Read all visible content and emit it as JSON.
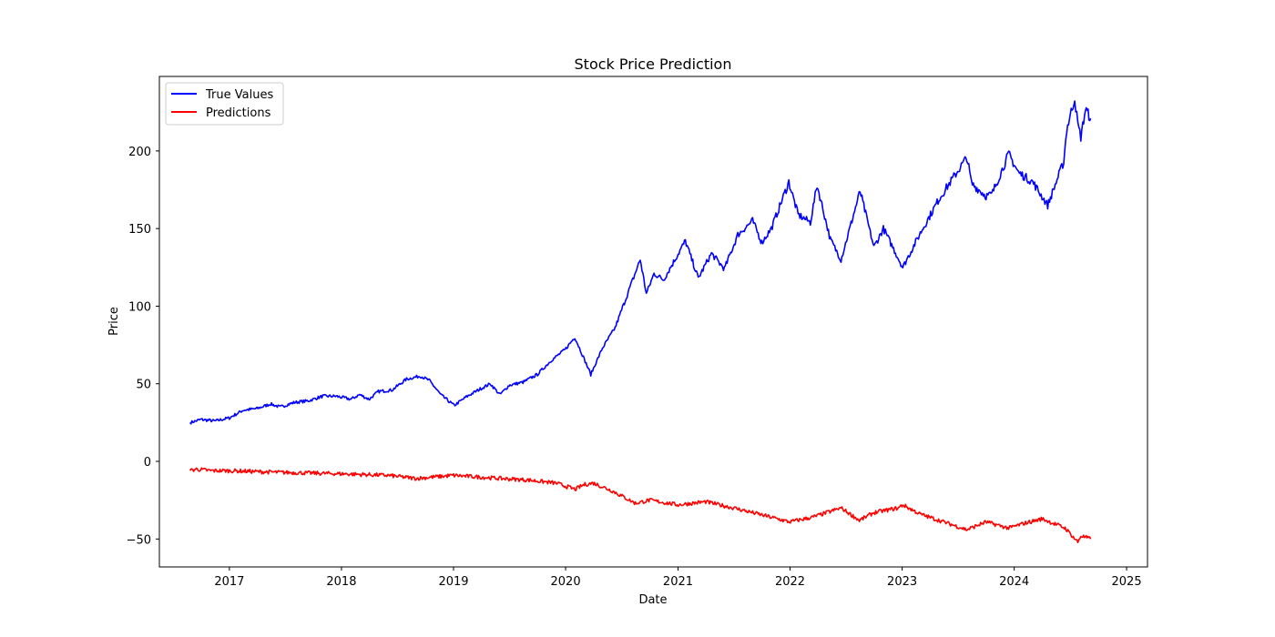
{
  "chart_data": {
    "type": "line",
    "title": "Stock Price Prediction",
    "xlabel": "Date",
    "ylabel": "Price",
    "xlim": [
      "2016-05-18",
      "2025-03-10"
    ],
    "ylim": [
      -68,
      248
    ],
    "x_ticks": [
      "2017",
      "2018",
      "2019",
      "2020",
      "2021",
      "2022",
      "2023",
      "2024",
      "2025"
    ],
    "y_ticks": [
      "-50",
      "0",
      "50",
      "100",
      "150",
      "200"
    ],
    "grid": false,
    "legend_position": "top-left",
    "series": [
      {
        "name": "True Values",
        "color": "#0000ff",
        "points": [
          [
            "2016-08-26",
            25
          ],
          [
            "2016-10-01",
            27
          ],
          [
            "2016-11-15",
            26
          ],
          [
            "2017-01-01",
            28
          ],
          [
            "2017-02-15",
            33
          ],
          [
            "2017-04-01",
            34
          ],
          [
            "2017-05-15",
            37
          ],
          [
            "2017-06-15",
            35
          ],
          [
            "2017-08-01",
            38
          ],
          [
            "2017-09-15",
            39
          ],
          [
            "2017-11-01",
            42
          ],
          [
            "2017-12-15",
            42
          ],
          [
            "2018-02-01",
            40
          ],
          [
            "2018-03-01",
            43
          ],
          [
            "2018-04-01",
            40
          ],
          [
            "2018-05-01",
            45
          ],
          [
            "2018-06-15",
            46
          ],
          [
            "2018-08-01",
            53
          ],
          [
            "2018-09-15",
            55
          ],
          [
            "2018-10-15",
            52
          ],
          [
            "2018-11-20",
            43
          ],
          [
            "2019-01-03",
            36
          ],
          [
            "2019-02-15",
            42
          ],
          [
            "2019-04-01",
            47
          ],
          [
            "2019-05-01",
            50
          ],
          [
            "2019-06-01",
            43
          ],
          [
            "2019-07-01",
            49
          ],
          [
            "2019-08-15",
            51
          ],
          [
            "2019-10-01",
            56
          ],
          [
            "2019-11-15",
            65
          ],
          [
            "2019-12-30",
            72
          ],
          [
            "2020-01-31",
            80
          ],
          [
            "2020-03-23",
            56
          ],
          [
            "2020-04-30",
            73
          ],
          [
            "2020-06-10",
            86
          ],
          [
            "2020-08-31",
            130
          ],
          [
            "2020-09-20",
            108
          ],
          [
            "2020-10-15",
            121
          ],
          [
            "2020-11-15",
            117
          ],
          [
            "2021-01-25",
            142
          ],
          [
            "2021-03-08",
            118
          ],
          [
            "2021-04-20",
            134
          ],
          [
            "2021-06-01",
            124
          ],
          [
            "2021-07-15",
            146
          ],
          [
            "2021-09-01",
            155
          ],
          [
            "2021-10-01",
            141
          ],
          [
            "2021-11-01",
            150
          ],
          [
            "2021-12-28",
            180
          ],
          [
            "2022-01-27",
            159
          ],
          [
            "2022-03-08",
            154
          ],
          [
            "2022-03-30",
            178
          ],
          [
            "2022-05-12",
            143
          ],
          [
            "2022-06-16",
            130
          ],
          [
            "2022-08-17",
            174
          ],
          [
            "2022-10-01",
            138
          ],
          [
            "2022-11-01",
            150
          ],
          [
            "2023-01-03",
            125
          ],
          [
            "2023-03-01",
            147
          ],
          [
            "2023-05-01",
            169
          ],
          [
            "2023-07-31",
            196
          ],
          [
            "2023-08-15",
            179
          ],
          [
            "2023-10-01",
            171
          ],
          [
            "2023-10-20",
            172
          ],
          [
            "2023-12-14",
            198
          ],
          [
            "2024-01-15",
            186
          ],
          [
            "2024-03-01",
            180
          ],
          [
            "2024-04-19",
            165
          ],
          [
            "2024-06-10",
            193
          ],
          [
            "2024-06-20",
            214
          ],
          [
            "2024-07-16",
            234
          ],
          [
            "2024-07-26",
            217
          ],
          [
            "2024-08-05",
            209
          ],
          [
            "2024-08-20",
            227
          ],
          [
            "2024-09-06",
            221
          ]
        ]
      },
      {
        "name": "Predictions",
        "color": "#ff0000",
        "points": [
          [
            "2016-08-26",
            -6
          ],
          [
            "2016-09-15",
            -5
          ],
          [
            "2016-11-01",
            -6
          ],
          [
            "2017-01-01",
            -6
          ],
          [
            "2017-06-01",
            -7
          ],
          [
            "2018-01-01",
            -8
          ],
          [
            "2018-06-01",
            -9
          ],
          [
            "2018-09-01",
            -11
          ],
          [
            "2019-01-01",
            -9
          ],
          [
            "2019-06-01",
            -11
          ],
          [
            "2019-09-01",
            -12
          ],
          [
            "2019-12-01",
            -14
          ],
          [
            "2020-02-01",
            -18
          ],
          [
            "2020-03-01",
            -15
          ],
          [
            "2020-04-01",
            -14
          ],
          [
            "2020-06-01",
            -19
          ],
          [
            "2020-08-15",
            -27
          ],
          [
            "2020-10-01",
            -25
          ],
          [
            "2021-01-01",
            -28
          ],
          [
            "2021-04-01",
            -26
          ],
          [
            "2021-07-01",
            -30
          ],
          [
            "2021-09-01",
            -33
          ],
          [
            "2021-12-30",
            -39
          ],
          [
            "2022-03-15",
            -36
          ],
          [
            "2022-06-16",
            -30
          ],
          [
            "2022-08-15",
            -38
          ],
          [
            "2022-10-01",
            -33
          ],
          [
            "2022-12-20",
            -30
          ],
          [
            "2023-01-03",
            -28
          ],
          [
            "2023-03-01",
            -34
          ],
          [
            "2023-07-31",
            -44
          ],
          [
            "2023-10-01",
            -39
          ],
          [
            "2023-12-14",
            -43
          ],
          [
            "2024-02-01",
            -40
          ],
          [
            "2024-04-01",
            -37
          ],
          [
            "2024-06-15",
            -43
          ],
          [
            "2024-07-26",
            -52
          ],
          [
            "2024-08-05",
            -48
          ],
          [
            "2024-09-06",
            -50
          ]
        ]
      }
    ]
  }
}
